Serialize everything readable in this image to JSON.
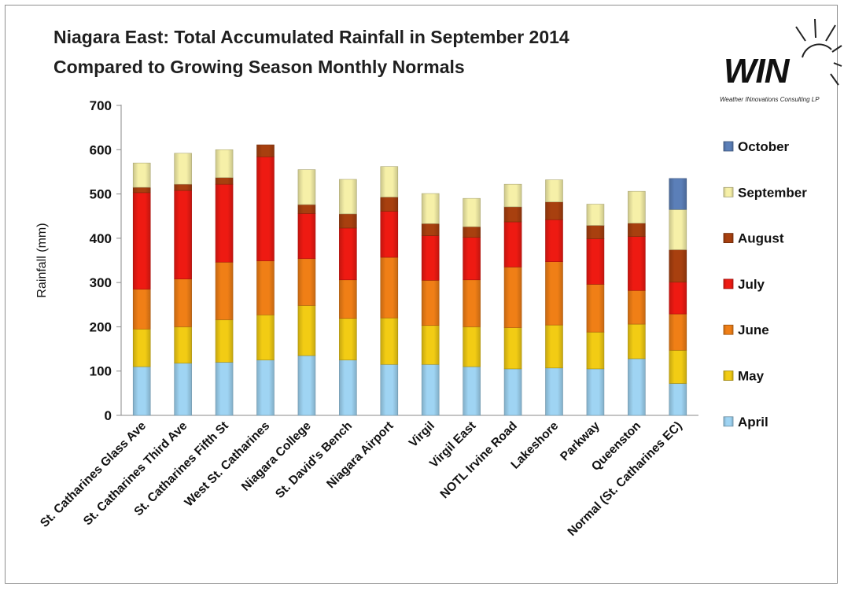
{
  "title": {
    "line1": "Niagara East: Total Accumulated Rainfall in September 2014",
    "line2": "Compared to Growing Season Monthly Normals"
  },
  "logo": {
    "text": "WIN",
    "subtitle": "Weather INnovations Consulting LP"
  },
  "colors": {
    "April": "#9fd4f3",
    "May": "#f2cc14",
    "June": "#f07f16",
    "July": "#ee1a12",
    "August": "#a8400f",
    "September": "#f6f0a8",
    "October": "#5b7fb8"
  },
  "chart_data": {
    "type": "bar",
    "stacked": true,
    "title": "Niagara East: Total Accumulated Rainfall in September 2014 Compared to Growing Season Monthly Normals",
    "xlabel": "",
    "ylabel": "Rainfall (mm)",
    "ylim": [
      0,
      700
    ],
    "yticks": [
      0,
      100,
      200,
      300,
      400,
      500,
      600,
      700
    ],
    "grid": false,
    "legend_position": "right",
    "categories": [
      "St. Catharines Glass Ave",
      "St. Catharines Third Ave",
      "St. Catharines Fifth St",
      "West St. Catharines",
      "Niagara College",
      "St. David's Bench",
      "Niagara Airport",
      "Virgil",
      "Virgil East",
      "NOTL Irvine Road",
      "Lakeshore",
      "Parkway",
      "Queenston",
      "Normal (St. Catharines EC)"
    ],
    "series": [
      {
        "name": "April",
        "values": [
          110,
          118,
          120,
          125,
          135,
          125,
          115,
          115,
          110,
          105,
          107,
          105,
          128,
          72
        ]
      },
      {
        "name": "May",
        "values": [
          85,
          82,
          96,
          102,
          113,
          94,
          105,
          88,
          90,
          93,
          97,
          83,
          78,
          75
        ]
      },
      {
        "name": "June",
        "values": [
          90,
          108,
          130,
          122,
          106,
          87,
          137,
          102,
          106,
          137,
          143,
          108,
          76,
          82
        ]
      },
      {
        "name": "July",
        "values": [
          218,
          200,
          176,
          235,
          102,
          117,
          104,
          101,
          96,
          102,
          95,
          103,
          122,
          72
        ]
      },
      {
        "name": "August",
        "values": [
          12,
          14,
          15,
          27,
          20,
          32,
          32,
          27,
          24,
          34,
          40,
          30,
          30,
          73
        ]
      },
      {
        "name": "September",
        "values": [
          55,
          70,
          63,
          0,
          79,
          78,
          69,
          68,
          64,
          51,
          50,
          48,
          72,
          91
        ]
      },
      {
        "name": "October",
        "values": [
          0,
          0,
          0,
          0,
          0,
          0,
          0,
          0,
          0,
          0,
          0,
          0,
          0,
          70
        ]
      }
    ]
  }
}
